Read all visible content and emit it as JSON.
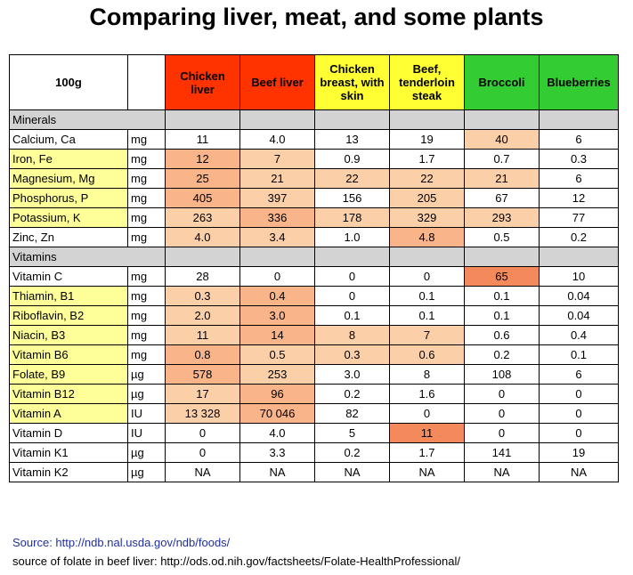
{
  "title": "Comparing liver, meat, and some plants",
  "header": {
    "label": "100g",
    "columns": [
      {
        "name": "Chicken liver",
        "color": "#ff3300"
      },
      {
        "name": "Beef liver",
        "color": "#ff3300"
      },
      {
        "name": "Chicken breast, with skin",
        "color": "#ffff33"
      },
      {
        "name": "Beef, tenderloin steak",
        "color": "#ffff33"
      },
      {
        "name": "Broccoli",
        "color": "#33cc33"
      },
      {
        "name": "Blueberries",
        "color": "#33cc33"
      }
    ]
  },
  "sections": [
    {
      "title": "Minerals",
      "rows": [
        {
          "name": "Calcium, Ca",
          "unit": "mg",
          "yellow": false,
          "values": [
            "11",
            "4.0",
            "13",
            "19",
            "40",
            "6"
          ],
          "hl": [
            0,
            0,
            0,
            0,
            1,
            0
          ]
        },
        {
          "name": "Iron, Fe",
          "unit": "mg",
          "yellow": true,
          "values": [
            "12",
            "7",
            "0.9",
            "1.7",
            "0.7",
            "0.3"
          ],
          "hl": [
            2,
            1,
            0,
            0,
            0,
            0
          ]
        },
        {
          "name": "Magnesium, Mg",
          "unit": "mg",
          "yellow": true,
          "values": [
            "25",
            "21",
            "22",
            "22",
            "21",
            "6"
          ],
          "hl": [
            2,
            1,
            1,
            1,
            1,
            0
          ]
        },
        {
          "name": "Phosphorus, P",
          "unit": "mg",
          "yellow": true,
          "values": [
            "405",
            "397",
            "156",
            "205",
            "67",
            "12"
          ],
          "hl": [
            2,
            1,
            0,
            1,
            0,
            0
          ]
        },
        {
          "name": "Potassium, K",
          "unit": "mg",
          "yellow": true,
          "values": [
            "263",
            "336",
            "178",
            "329",
            "293",
            "77"
          ],
          "hl": [
            1,
            2,
            1,
            1,
            1,
            0
          ]
        },
        {
          "name": "Zinc, Zn",
          "unit": "mg",
          "yellow": false,
          "values": [
            "4.0",
            "3.4",
            "1.0",
            "4.8",
            "0.5",
            "0.2"
          ],
          "hl": [
            1,
            1,
            0,
            2,
            0,
            0
          ]
        }
      ]
    },
    {
      "title": "Vitamins",
      "rows": [
        {
          "name": "Vitamin C",
          "unit": "mg",
          "yellow": false,
          "values": [
            "28",
            "0",
            "0",
            "0",
            "65",
            "10"
          ],
          "hl": [
            0,
            0,
            0,
            0,
            3,
            0
          ]
        },
        {
          "name": "Thiamin, B1",
          "unit": "mg",
          "yellow": true,
          "values": [
            "0.3",
            "0.4",
            "0",
            "0.1",
            "0.1",
            "0.04"
          ],
          "hl": [
            1,
            2,
            0,
            0,
            0,
            0
          ]
        },
        {
          "name": "Riboflavin, B2",
          "unit": "mg",
          "yellow": true,
          "values": [
            "2.0",
            "3.0",
            "0.1",
            "0.1",
            "0.1",
            "0.04"
          ],
          "hl": [
            1,
            2,
            0,
            0,
            0,
            0
          ]
        },
        {
          "name": "Niacin, B3",
          "unit": "mg",
          "yellow": true,
          "values": [
            "11",
            "14",
            "8",
            "7",
            "0.6",
            "0.4"
          ],
          "hl": [
            1,
            2,
            1,
            1,
            0,
            0
          ]
        },
        {
          "name": "Vitamin B6",
          "unit": "mg",
          "yellow": true,
          "values": [
            "0.8",
            "0.5",
            "0.3",
            "0.6",
            "0.2",
            "0.1"
          ],
          "hl": [
            2,
            1,
            1,
            1,
            0,
            0
          ]
        },
        {
          "name": "Folate, B9",
          "unit": "µg",
          "yellow": true,
          "values": [
            "578",
            "253",
            "3.0",
            "8",
            "108",
            "6"
          ],
          "hl": [
            2,
            1,
            0,
            0,
            0,
            0
          ]
        },
        {
          "name": "Vitamin B12",
          "unit": "µg",
          "yellow": true,
          "values": [
            "17",
            "96",
            "0.2",
            "1.6",
            "0",
            "0"
          ],
          "hl": [
            1,
            2,
            0,
            0,
            0,
            0
          ]
        },
        {
          "name": "Vitamin A",
          "unit": "IU",
          "yellow": true,
          "values": [
            "13 328",
            "70 046",
            "82",
            "0",
            "0",
            "0"
          ],
          "hl": [
            1,
            2,
            0,
            0,
            0,
            0
          ]
        },
        {
          "name": "Vitamin D",
          "unit": "IU",
          "yellow": false,
          "values": [
            "0",
            "4.0",
            "5",
            "11",
            "0",
            "0"
          ],
          "hl": [
            0,
            0,
            0,
            3,
            0,
            0
          ]
        },
        {
          "name": "Vitamin K1",
          "unit": "µg",
          "yellow": false,
          "values": [
            "0",
            "3.3",
            "0.2",
            "1.7",
            "141",
            "19"
          ],
          "hl": [
            0,
            0,
            0,
            0,
            0,
            0
          ]
        },
        {
          "name": "Vitamin K2",
          "unit": "µg",
          "yellow": false,
          "values": [
            "NA",
            "NA",
            "NA",
            "NA",
            "NA",
            "NA"
          ],
          "hl": [
            0,
            0,
            0,
            0,
            0,
            0
          ]
        }
      ]
    }
  ],
  "footer": {
    "source": "Source: http://ndb.nal.usda.gov/ndb/foods/",
    "folate_source": "source of folate in beef liver: http://ods.od.nih.gov/factsheets/Folate-HealthProfessional/"
  }
}
